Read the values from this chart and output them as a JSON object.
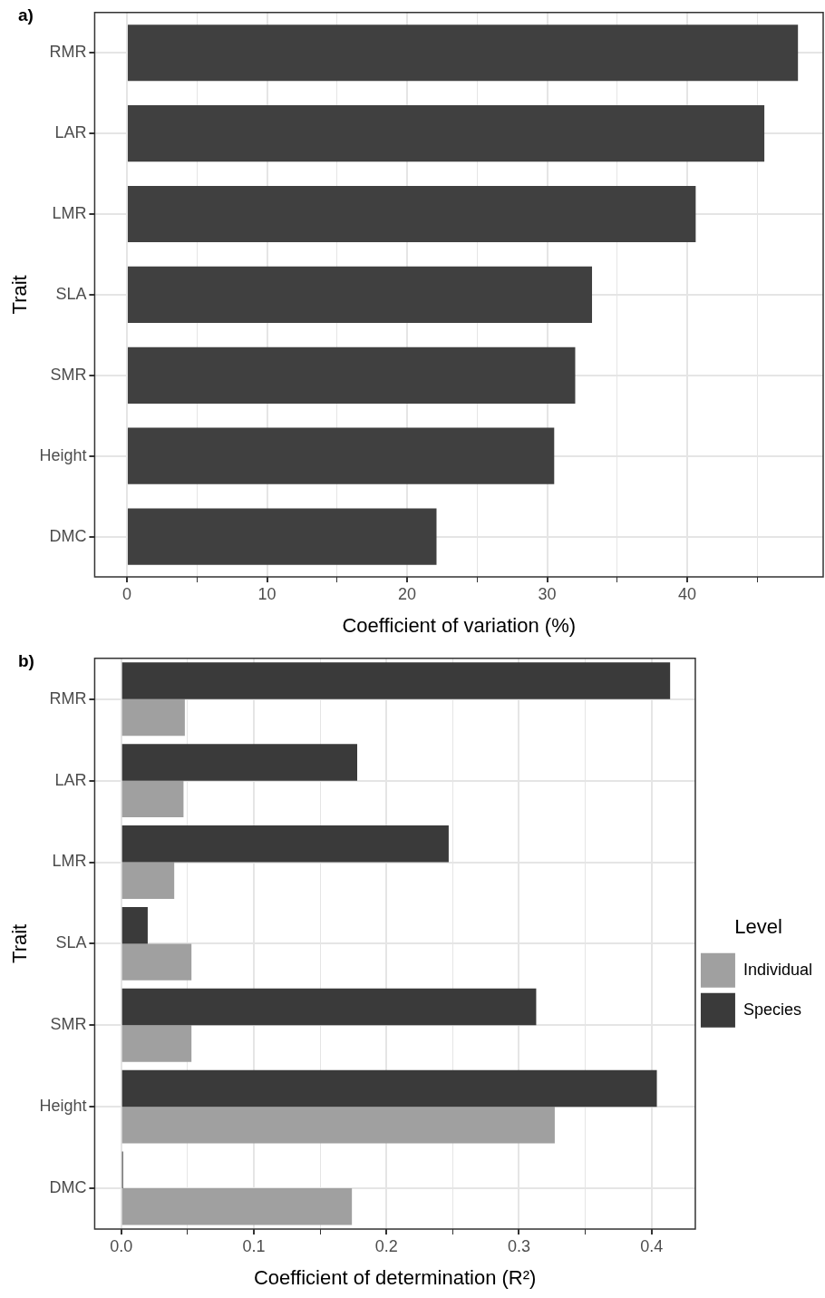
{
  "chart_data": [
    {
      "type": "bar",
      "orientation": "horizontal",
      "categories": [
        "RMR",
        "LAR",
        "LMR",
        "SLA",
        "SMR",
        "Height",
        "DMC"
      ],
      "values": [
        47.9,
        45.5,
        40.6,
        33.2,
        32.0,
        30.5,
        22.1
      ],
      "color": "#404040",
      "xlabel": "Coefficient of variation (%)",
      "ylabel": "Trait",
      "xlim": [
        -2.3,
        49.7
      ],
      "xticks": [
        0,
        {
          "value": 5,
          "label": null
        },
        10,
        {
          "value": 15,
          "label": null
        },
        20,
        {
          "value": 25,
          "label": null
        },
        30,
        {
          "value": 35,
          "label": null
        },
        40,
        {
          "value": 45,
          "label": null
        }
      ],
      "grid": true,
      "legend": false,
      "annotations": [
        "a)"
      ]
    },
    {
      "type": "bar",
      "orientation": "horizontal",
      "categories": [
        "RMR",
        "LAR",
        "LMR",
        "SLA",
        "SMR",
        "Height",
        "DMC"
      ],
      "series": [
        {
          "name": "Individual",
          "color": "#a0a0a0",
          "values": [
            0.048,
            0.047,
            0.04,
            0.053,
            0.053,
            0.327,
            0.174
          ]
        },
        {
          "name": "Species",
          "color": "#3a3a3a",
          "values": [
            0.414,
            0.178,
            0.247,
            0.02,
            0.313,
            0.404,
            0.001
          ]
        }
      ],
      "xlabel": "Coefficient of determination (R²)",
      "ylabel": "Trait",
      "legend_title": "Level",
      "xlim": [
        -0.02,
        0.433
      ],
      "xticks": [
        {
          "value": 0,
          "label": "0.0"
        },
        {
          "value": 0.05,
          "label": null
        },
        0.1,
        {
          "value": 0.15,
          "label": null
        },
        0.2,
        {
          "value": 0.25,
          "label": null
        },
        0.3,
        {
          "value": 0.35,
          "label": null
        },
        0.4
      ],
      "grid": true,
      "legend": "right",
      "annotations": [
        "b)"
      ]
    }
  ]
}
